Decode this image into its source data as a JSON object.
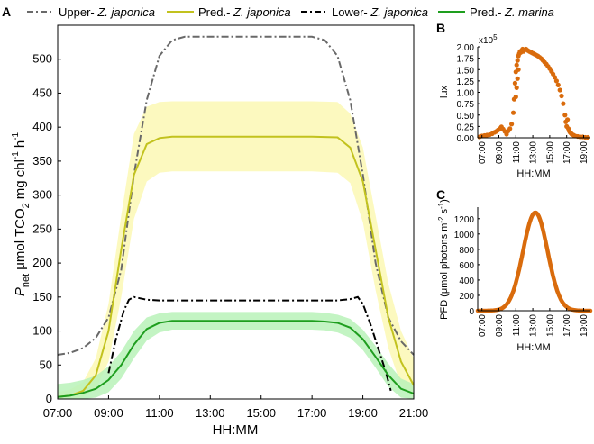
{
  "chart_data": [
    {
      "panel": "A",
      "type": "line",
      "xlabel": "HH:MM",
      "ylabel": "P_net μmol TCO2 mg chl^-1 h^-1",
      "ylabel_parts": {
        "p": "P",
        "net": "net",
        "unit": "μmol TCO",
        "two": "2",
        "mg": "mg chl",
        "m1": "-1",
        "h": "h",
        "m1b": "-1"
      },
      "xlim": [
        7,
        21
      ],
      "ylim": [
        0,
        550
      ],
      "xticks": [
        7,
        9,
        11,
        13,
        15,
        17,
        19,
        21
      ],
      "xticklabels": [
        "07:00",
        "09:00",
        "11:00",
        "13:00",
        "15:00",
        "17:00",
        "19:00",
        "21:00"
      ],
      "yticks": [
        0,
        50,
        100,
        150,
        200,
        250,
        300,
        350,
        400,
        450,
        500
      ],
      "yticklabels": [
        "0",
        "50",
        "100",
        "150",
        "200",
        "250",
        "300",
        "350",
        "400",
        "450",
        "500"
      ],
      "legend": [
        {
          "prefix": "Upper- ",
          "species": "Z. japonica",
          "style": "dashdot",
          "color": "#696969"
        },
        {
          "prefix": "Pred.- ",
          "species": "Z. japonica",
          "style": "solid",
          "color": "#c2c21e"
        },
        {
          "prefix": "Lower- ",
          "species": "Z. japonica",
          "style": "dashdot",
          "color": "#000000"
        },
        {
          "prefix": "Pred.- ",
          "species": "Z. marina",
          "style": "solid",
          "color": "#1e9e1e"
        }
      ],
      "series": [
        {
          "name": "Upper- Z. japonica",
          "x": [
            7,
            7.5,
            8,
            8.5,
            9,
            9.5,
            10,
            10.5,
            11,
            11.5,
            12,
            17,
            17.5,
            18,
            18.5,
            19,
            19.5,
            20,
            20.5,
            21
          ],
          "y": [
            65,
            68,
            75,
            90,
            120,
            190,
            330,
            440,
            505,
            528,
            533,
            533,
            528,
            505,
            440,
            330,
            200,
            120,
            85,
            65
          ]
        },
        {
          "name": "Pred.- Z. japonica",
          "x": [
            7,
            7.5,
            8,
            8.5,
            9,
            9.5,
            10,
            10.5,
            11,
            11.5,
            12,
            17,
            18,
            18.5,
            19,
            19.5,
            20,
            20.5,
            21
          ],
          "y": [
            3,
            5,
            12,
            35,
            100,
            220,
            330,
            375,
            384,
            386,
            386,
            386,
            385,
            370,
            320,
            220,
            120,
            55,
            20
          ]
        },
        {
          "name": "Pred.- Z. japonica band",
          "x": [
            7,
            7.5,
            8,
            8.5,
            9,
            9.5,
            10,
            10.5,
            11,
            11.5,
            12,
            17,
            18,
            18.5,
            19,
            19.5,
            20,
            20.5,
            21
          ],
          "upper": [
            10,
            14,
            25,
            60,
            140,
            270,
            390,
            430,
            437,
            438,
            438,
            438,
            437,
            420,
            370,
            270,
            170,
            100,
            60
          ],
          "lower": [
            0,
            0,
            3,
            15,
            55,
            150,
            265,
            320,
            333,
            335,
            335,
            335,
            333,
            318,
            260,
            160,
            75,
            20,
            2
          ]
        },
        {
          "name": "Lower- Z. japonica",
          "x": [
            9,
            9.3,
            9.6,
            9.8,
            10,
            10.5,
            11,
            18,
            18.5,
            18.8,
            19,
            19.3,
            19.6,
            19.9,
            20.1
          ],
          "y": [
            38,
            90,
            130,
            146,
            150,
            146,
            145,
            145,
            147,
            150,
            140,
            110,
            75,
            40,
            12
          ]
        },
        {
          "name": "Pred.- Z. marina",
          "x": [
            7,
            7.5,
            8,
            8.5,
            9,
            9.5,
            10,
            10.5,
            11,
            11.5,
            12,
            17,
            17.5,
            18,
            18.5,
            19,
            19.5,
            20,
            20.5,
            21
          ],
          "y": [
            3,
            5,
            9,
            15,
            28,
            50,
            80,
            103,
            112,
            115,
            115,
            115,
            114,
            112,
            105,
            88,
            62,
            35,
            15,
            8
          ]
        },
        {
          "name": "Pred.- Z. marina band",
          "x": [
            7,
            7.5,
            8,
            8.5,
            9,
            9.5,
            10,
            10.5,
            11,
            11.5,
            12,
            17,
            17.5,
            18,
            18.5,
            19,
            19.5,
            20,
            20.5,
            21
          ],
          "upper": [
            22,
            24,
            28,
            34,
            48,
            70,
            100,
            120,
            126,
            128,
            128,
            128,
            127,
            124,
            118,
            102,
            78,
            52,
            30,
            22
          ],
          "lower": [
            0,
            0,
            0,
            2,
            10,
            30,
            60,
            86,
            98,
            102,
            102,
            102,
            101,
            98,
            90,
            72,
            46,
            18,
            2,
            0
          ]
        }
      ]
    },
    {
      "panel": "B",
      "type": "scatter",
      "xlabel": "HH:MM",
      "ylabel": "lux",
      "multiplier": "x10",
      "multiplier_exp": "5",
      "xlim": [
        6.5,
        19.8
      ],
      "ylim": [
        0,
        2.0
      ],
      "xticks": [
        7,
        9,
        11,
        13,
        15,
        17,
        19
      ],
      "xticklabels": [
        "07:00",
        "09:00",
        "11:00",
        "13:00",
        "15:00",
        "17:00",
        "19:00"
      ],
      "yticks": [
        0,
        0.25,
        0.5,
        0.75,
        1.0,
        1.25,
        1.5,
        1.75,
        2.0
      ],
      "yticklabels": [
        "0.00",
        "0.25",
        "0.50",
        "0.75",
        "1.00",
        "1.25",
        "1.50",
        "1.75",
        "2.00"
      ],
      "color": "#d96b0c",
      "points": {
        "x": [
          6.7,
          7.0,
          7.3,
          7.6,
          7.9,
          8.2,
          8.5,
          8.7,
          8.9,
          9.1,
          9.3,
          9.5,
          9.7,
          9.9,
          10.1,
          10.3,
          10.5,
          10.7,
          10.8,
          10.9,
          11.0,
          11.0,
          11.1,
          11.1,
          11.2,
          11.2,
          11.3,
          11.3,
          11.4,
          11.5,
          11.6,
          11.7,
          11.8,
          11.9,
          12.0,
          12.2,
          12.4,
          12.6,
          12.8,
          13.0,
          13.2,
          13.4,
          13.6,
          13.8,
          14.0,
          14.2,
          14.4,
          14.6,
          14.8,
          15.0,
          15.2,
          15.4,
          15.6,
          15.8,
          16.0,
          16.2,
          16.4,
          16.6,
          16.8,
          16.9,
          17.0,
          17.1,
          17.2,
          17.3,
          17.4,
          17.5,
          17.6,
          17.8,
          18.0,
          18.3,
          18.6,
          18.9,
          19.2,
          19.5
        ],
        "y": [
          0.02,
          0.04,
          0.05,
          0.06,
          0.07,
          0.09,
          0.12,
          0.14,
          0.17,
          0.2,
          0.24,
          0.19,
          0.14,
          0.08,
          0.15,
          0.2,
          0.3,
          0.55,
          0.85,
          1.2,
          1.45,
          0.9,
          1.6,
          1.1,
          1.7,
          1.3,
          1.8,
          1.5,
          1.85,
          1.9,
          1.88,
          1.92,
          1.95,
          1.9,
          1.93,
          1.95,
          1.92,
          1.9,
          1.88,
          1.86,
          1.84,
          1.82,
          1.8,
          1.77,
          1.74,
          1.7,
          1.66,
          1.62,
          1.57,
          1.52,
          1.46,
          1.4,
          1.33,
          1.25,
          1.16,
          1.05,
          0.92,
          0.75,
          0.5,
          0.35,
          0.25,
          0.4,
          0.2,
          0.15,
          0.12,
          0.1,
          0.08,
          0.06,
          0.04,
          0.03,
          0.02,
          0.02,
          0.01,
          0.01
        ]
      }
    },
    {
      "panel": "C",
      "type": "line",
      "xlabel": "HH:MM",
      "ylabel": "PFD (μmol photons m^-2 s^-1)",
      "ylabel_parts": {
        "pre": "PFD (μmol photons m",
        "e1": "-2",
        "s": "s",
        "e2": "-1",
        "post": ")"
      },
      "xlim": [
        6.5,
        19.8
      ],
      "ylim": [
        0,
        1350
      ],
      "xticks": [
        7,
        9,
        11,
        13,
        15,
        17,
        19
      ],
      "xticklabels": [
        "07:00",
        "09:00",
        "11:00",
        "13:00",
        "15:00",
        "17:00",
        "19:00"
      ],
      "yticks": [
        0,
        200,
        400,
        600,
        800,
        1000,
        1200
      ],
      "yticklabels": [
        "0",
        "200",
        "400",
        "600",
        "800",
        "1000",
        "1200"
      ],
      "color": "#d96b0c",
      "curve": {
        "peak_time": 13.3,
        "peak_value": 1280,
        "sigma_hours": 1.45
      }
    }
  ],
  "panel_labels": {
    "a": "A",
    "b": "B",
    "c": "C"
  }
}
